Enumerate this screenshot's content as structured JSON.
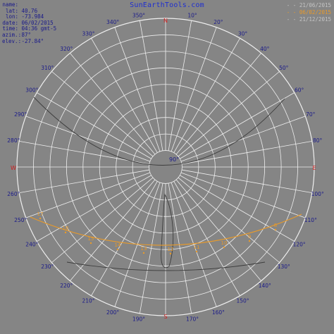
{
  "brand": "SunEarthTools.com",
  "info": {
    "name": {
      "label": "name:",
      "value": ""
    },
    "lat": {
      "label": "lat:",
      "value": "40.76"
    },
    "lon": {
      "label": "lon:",
      "value": "-73.984"
    },
    "date": {
      "label": "date:",
      "value": "06/02/2015"
    },
    "time": {
      "label": "time:",
      "value": "04:36 gmt-5"
    },
    "azim": {
      "label": "azim.:",
      "value": "87°"
    },
    "elev": {
      "label": "elev.:",
      "value": "-27.84°"
    }
  },
  "legend": [
    {
      "line": "- -",
      "label": "21/06/2015",
      "color": "#c4c4c4"
    },
    {
      "line": "- -",
      "label": "06/02/2015",
      "color": "#e89a2a"
    },
    {
      "line": "- -",
      "label": "21/12/2015",
      "color": "#c4c4c4"
    }
  ],
  "compass": {
    "N": "N",
    "E": "E",
    "S": "S",
    "W": "W"
  },
  "azimuth_labels": [
    "10°",
    "20°",
    "30°",
    "40°",
    "50°",
    "60°",
    "70°",
    "80°",
    "100°",
    "110°",
    "120°",
    "130°",
    "140°",
    "150°",
    "160°",
    "170°",
    "190°",
    "200°",
    "210°",
    "220°",
    "230°",
    "240°",
    "250°",
    "260°",
    "280°",
    "290°",
    "300°",
    "310°",
    "320°",
    "330°",
    "340°",
    "350°"
  ],
  "elevation_label": "90°",
  "path_hour_labels": [
    "8",
    "9",
    "10",
    "11",
    "12",
    "13",
    "14",
    "15",
    "16",
    "17"
  ],
  "colors": {
    "background": "#858585",
    "grid": "#efefef",
    "label": "#1a1a8a",
    "compass": "#d02020",
    "sun_path": "#e89a2a",
    "other_paths": "#3d3d3d"
  }
}
